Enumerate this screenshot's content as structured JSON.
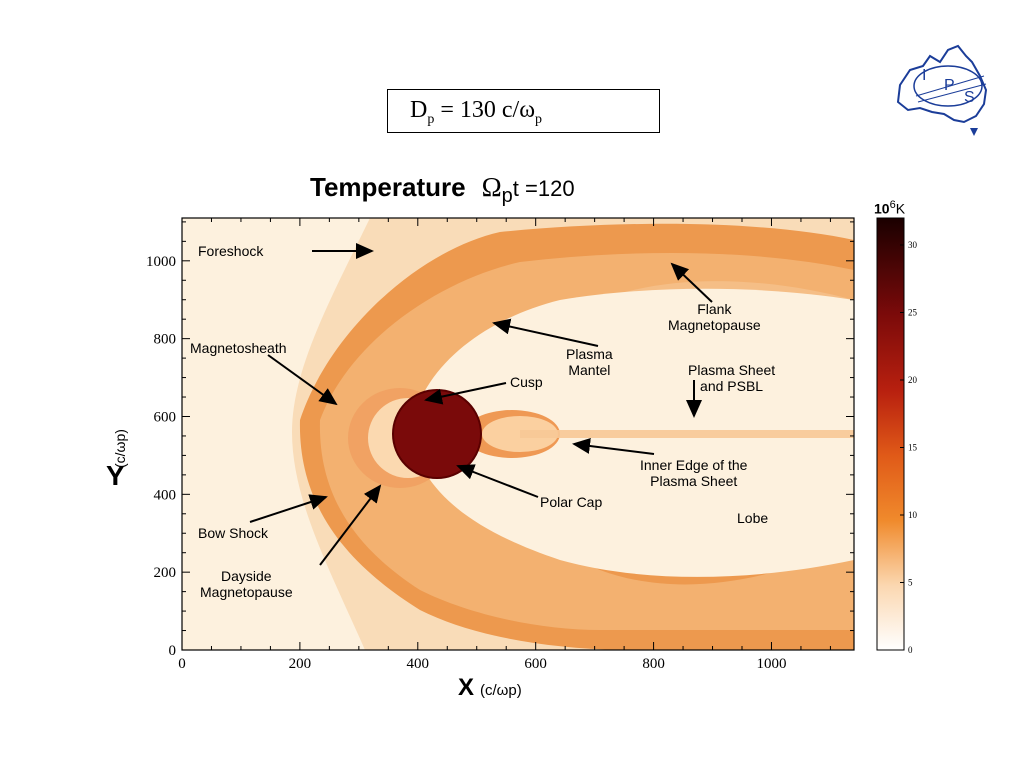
{
  "parameter": {
    "prefix": "D",
    "prefix_sub": "p",
    "equals": " = 130 c/ω",
    "suffix_sub": "p"
  },
  "logo": {
    "letters": [
      "I",
      "P",
      "S"
    ]
  },
  "plot": {
    "title": "Temperature",
    "time_label": "Ω",
    "time_sub": "p",
    "time_value": "t =120",
    "x_axis": {
      "label": "X",
      "unit": "(c/ωp)",
      "ticks": [
        "0",
        "200",
        "400",
        "600",
        "800",
        "1000"
      ]
    },
    "y_axis": {
      "label": "Y",
      "unit": "(c/ωp)",
      "ticks": [
        "0",
        "200",
        "400",
        "600",
        "800",
        "1000"
      ]
    },
    "colorbar": {
      "unit_base": "10",
      "unit_exp": "6",
      "unit": "K",
      "ticks": [
        "0",
        "5",
        "10",
        "15",
        "20",
        "25",
        "30"
      ]
    },
    "annotations": [
      {
        "id": "foreshock",
        "text": "Foreshock"
      },
      {
        "id": "flank",
        "text": "Flank\nMagnetopause"
      },
      {
        "id": "magnetosheath",
        "text": "Magnetosheath"
      },
      {
        "id": "plasma-mantel",
        "text": "Plasma\nMantel"
      },
      {
        "id": "plasma-sheet",
        "text": "Plasma Sheet\nand PSBL"
      },
      {
        "id": "cusp",
        "text": "Cusp"
      },
      {
        "id": "inner-edge",
        "text": "Inner Edge of the\nPlasma Sheet"
      },
      {
        "id": "polar-cap",
        "text": "Polar Cap"
      },
      {
        "id": "lobe",
        "text": "Lobe"
      },
      {
        "id": "bow-shock",
        "text": "Bow Shock"
      },
      {
        "id": "dayside",
        "text": "Dayside\nMagnetopause"
      }
    ]
  },
  "colors": {
    "background": "#fdf1de",
    "sheath": "#e8782a",
    "planet": "#7a0a0a",
    "accent": "#1b3d99"
  }
}
